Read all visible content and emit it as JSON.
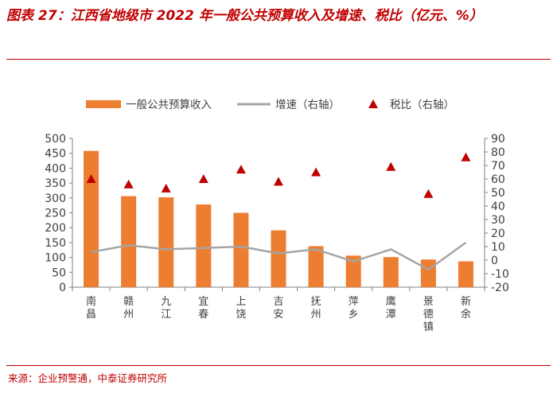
{
  "header": {
    "title": "图表 27：江西省地级市 2022 年一般公共预算收入及增速、税比（亿元、%）"
  },
  "footer": {
    "source": "来源：企业预警通，中泰证券研究所"
  },
  "chart_data": {
    "type": "bar",
    "title": "图表 27：江西省地级市 2022 年一般公共预算收入及增速、税比（亿元、%）",
    "categories": [
      "南昌",
      "赣州",
      "九江",
      "宜春",
      "上饶",
      "吉安",
      "抚州",
      "萍乡",
      "鹰潭",
      "景德镇",
      "新余"
    ],
    "series": [
      {
        "name": "一般公共预算收入",
        "kind": "bar",
        "axis": "left",
        "color": "#ed7d31",
        "values": [
          458,
          306,
          302,
          278,
          250,
          191,
          138,
          106,
          101,
          93,
          87
        ]
      },
      {
        "name": "增速（右轴）",
        "kind": "line",
        "axis": "right",
        "color": "#a5a5a5",
        "values": [
          6,
          11,
          8,
          9,
          10,
          5,
          8,
          -1,
          8,
          -7,
          13
        ]
      },
      {
        "name": "税比（右轴）",
        "kind": "scatter",
        "axis": "right",
        "color": "#c00000",
        "values": [
          60,
          56,
          53,
          60,
          67,
          58,
          65,
          null,
          69,
          49,
          76
        ]
      }
    ],
    "y_left": {
      "min": 0,
      "max": 500,
      "step": 50,
      "ticks": [
        "0",
        "50",
        "100",
        "150",
        "200",
        "250",
        "300",
        "350",
        "400",
        "450",
        "500"
      ]
    },
    "y_right": {
      "min": -20,
      "max": 90,
      "step": 10,
      "ticks": [
        "-20",
        "-10",
        "0",
        "10",
        "20",
        "30",
        "40",
        "50",
        "60",
        "70",
        "80",
        "90"
      ]
    },
    "legend_position": "top",
    "grid": false
  }
}
